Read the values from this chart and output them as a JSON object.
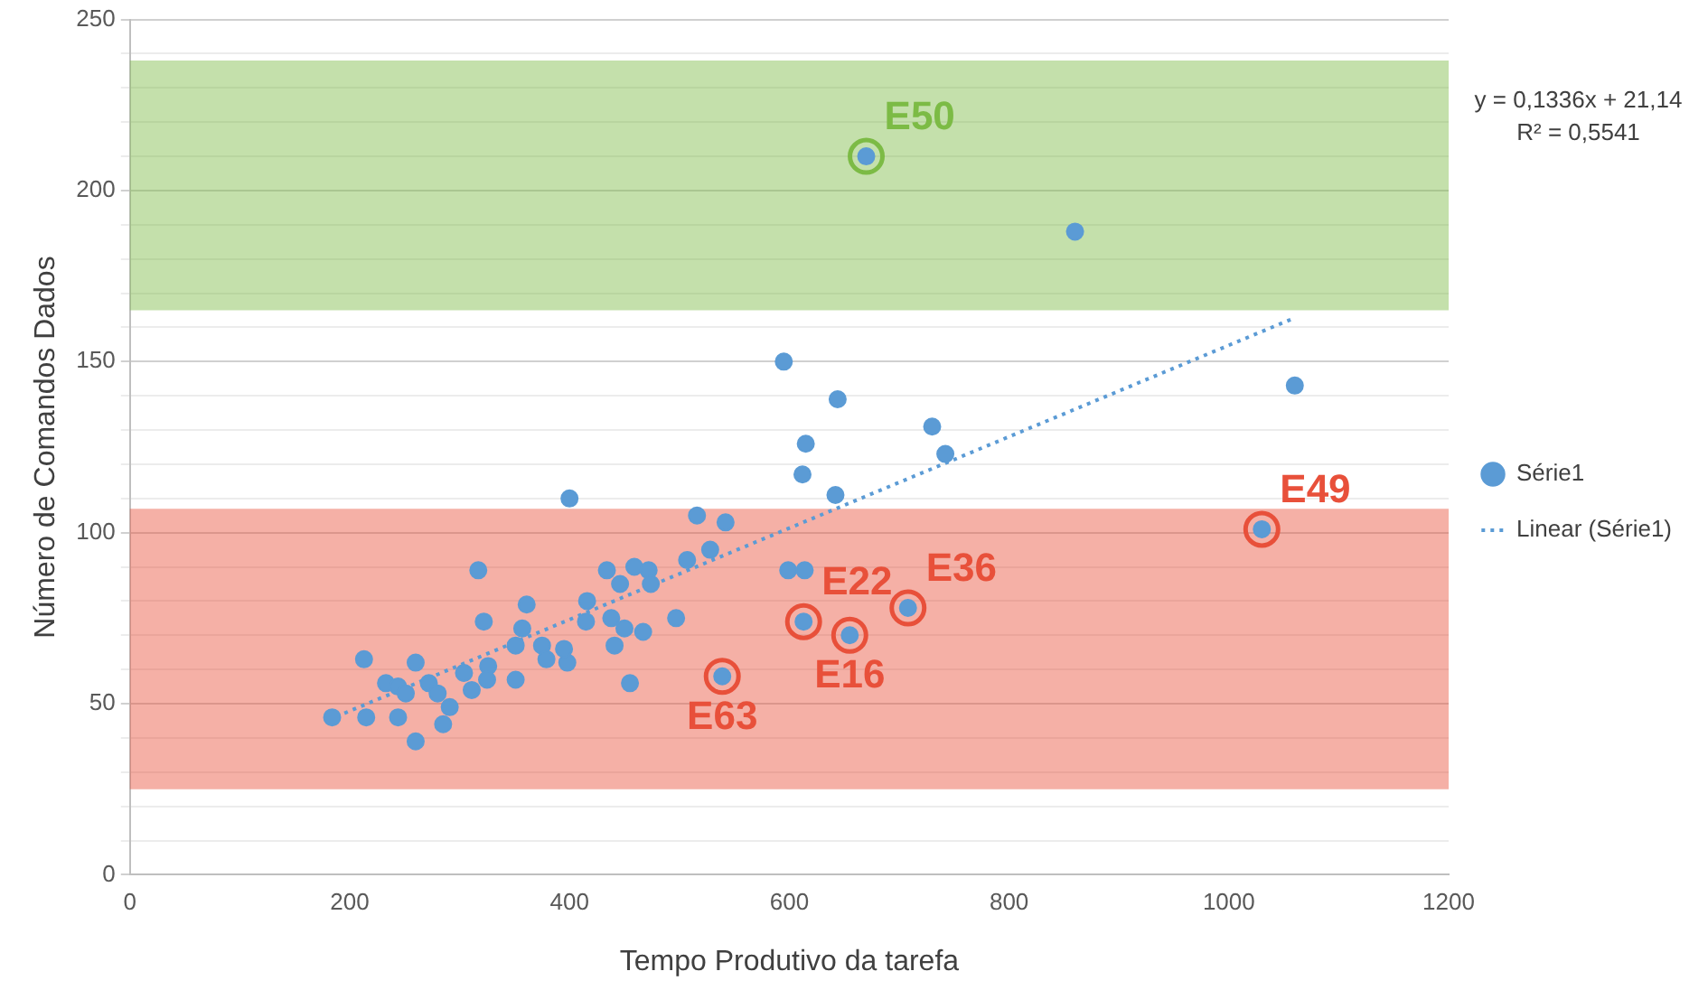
{
  "chart_data": {
    "type": "scatter",
    "xlabel": "Tempo Produtivo da tarefa",
    "ylabel": "Número de Comandos Dados",
    "xlim": [
      0,
      1200
    ],
    "xticks": [
      0,
      200,
      400,
      600,
      800,
      1000,
      1200
    ],
    "ylim": [
      0,
      250
    ],
    "yticks": [
      0,
      {
        "value": 10,
        "label": null
      },
      {
        "value": 20,
        "label": null
      },
      {
        "value": 30,
        "label": null
      },
      {
        "value": 40,
        "label": null
      },
      50,
      {
        "value": 60,
        "label": null
      },
      {
        "value": 70,
        "label": null
      },
      {
        "value": 80,
        "label": null
      },
      {
        "value": 90,
        "label": null
      },
      100,
      {
        "value": 110,
        "label": null
      },
      {
        "value": 120,
        "label": null
      },
      {
        "value": 130,
        "label": null
      },
      {
        "value": 140,
        "label": null
      },
      150,
      {
        "value": 160,
        "label": null
      },
      {
        "value": 170,
        "label": null
      },
      {
        "value": 180,
        "label": null
      },
      {
        "value": 190,
        "label": null
      },
      200,
      {
        "value": 210,
        "label": null
      },
      {
        "value": 220,
        "label": null
      },
      {
        "value": 230,
        "label": null
      },
      {
        "value": 240,
        "label": null
      },
      250
    ],
    "grid": "y",
    "legend": "right",
    "marker": "circle",
    "series": [
      {
        "name": "Série1",
        "color": "#5b9bd5",
        "x": [
          400,
          516,
          542,
          317,
          434,
          459,
          472,
          446,
          474,
          507,
          528,
          361,
          416,
          322,
          415,
          438,
          450,
          467,
          497,
          357,
          351,
          375,
          379,
          398,
          395,
          441,
          213,
          260,
          233,
          244,
          251,
          272,
          280,
          291,
          285,
          304,
          326,
          311,
          325,
          351,
          455,
          184,
          215,
          244,
          260,
          539,
          595,
          644,
          615,
          612,
          642,
          730,
          742,
          599,
          614,
          613,
          655,
          708,
          1060,
          1030,
          670,
          860
        ],
        "values": [
          110,
          105,
          103,
          89,
          89,
          90,
          89,
          85,
          85,
          92,
          95,
          79,
          80,
          74,
          74,
          75,
          72,
          71,
          75,
          72,
          67,
          67,
          63,
          62,
          66,
          67,
          63,
          62,
          56,
          55,
          53,
          56,
          53,
          49,
          44,
          59,
          61,
          54,
          57,
          57,
          56,
          46,
          46,
          46,
          39,
          58,
          150,
          139,
          126,
          117,
          111,
          131,
          123,
          89,
          89,
          74,
          70,
          78,
          143,
          101,
          210,
          188
        ]
      },
      {
        "name": "Linear (Série1)",
        "type": "line",
        "color": "#5b9bd5",
        "line_style": "dotted",
        "marker": "none",
        "x": [
          180,
          1060
        ],
        "values": [
          45.2,
          162.8
        ]
      }
    ],
    "bands": [
      {
        "axis": "y",
        "from": 165,
        "to": 238,
        "color": "#7cbb45"
      },
      {
        "axis": "y",
        "from": 25,
        "to": 107,
        "color": "#e8503a"
      }
    ],
    "annotations": [
      {
        "text": "E50",
        "x": 670,
        "y": 210
      },
      {
        "text": "E49",
        "x": 1030,
        "y": 101
      },
      {
        "text": "E22",
        "x": 613,
        "y": 74
      },
      {
        "text": "E16",
        "x": 655,
        "y": 70
      },
      {
        "text": "E36",
        "x": 708,
        "y": 78
      },
      {
        "text": "E63",
        "x": 539,
        "y": 58
      },
      "y = 0,1336x + 21,14",
      "R² = 0,5541"
    ]
  }
}
